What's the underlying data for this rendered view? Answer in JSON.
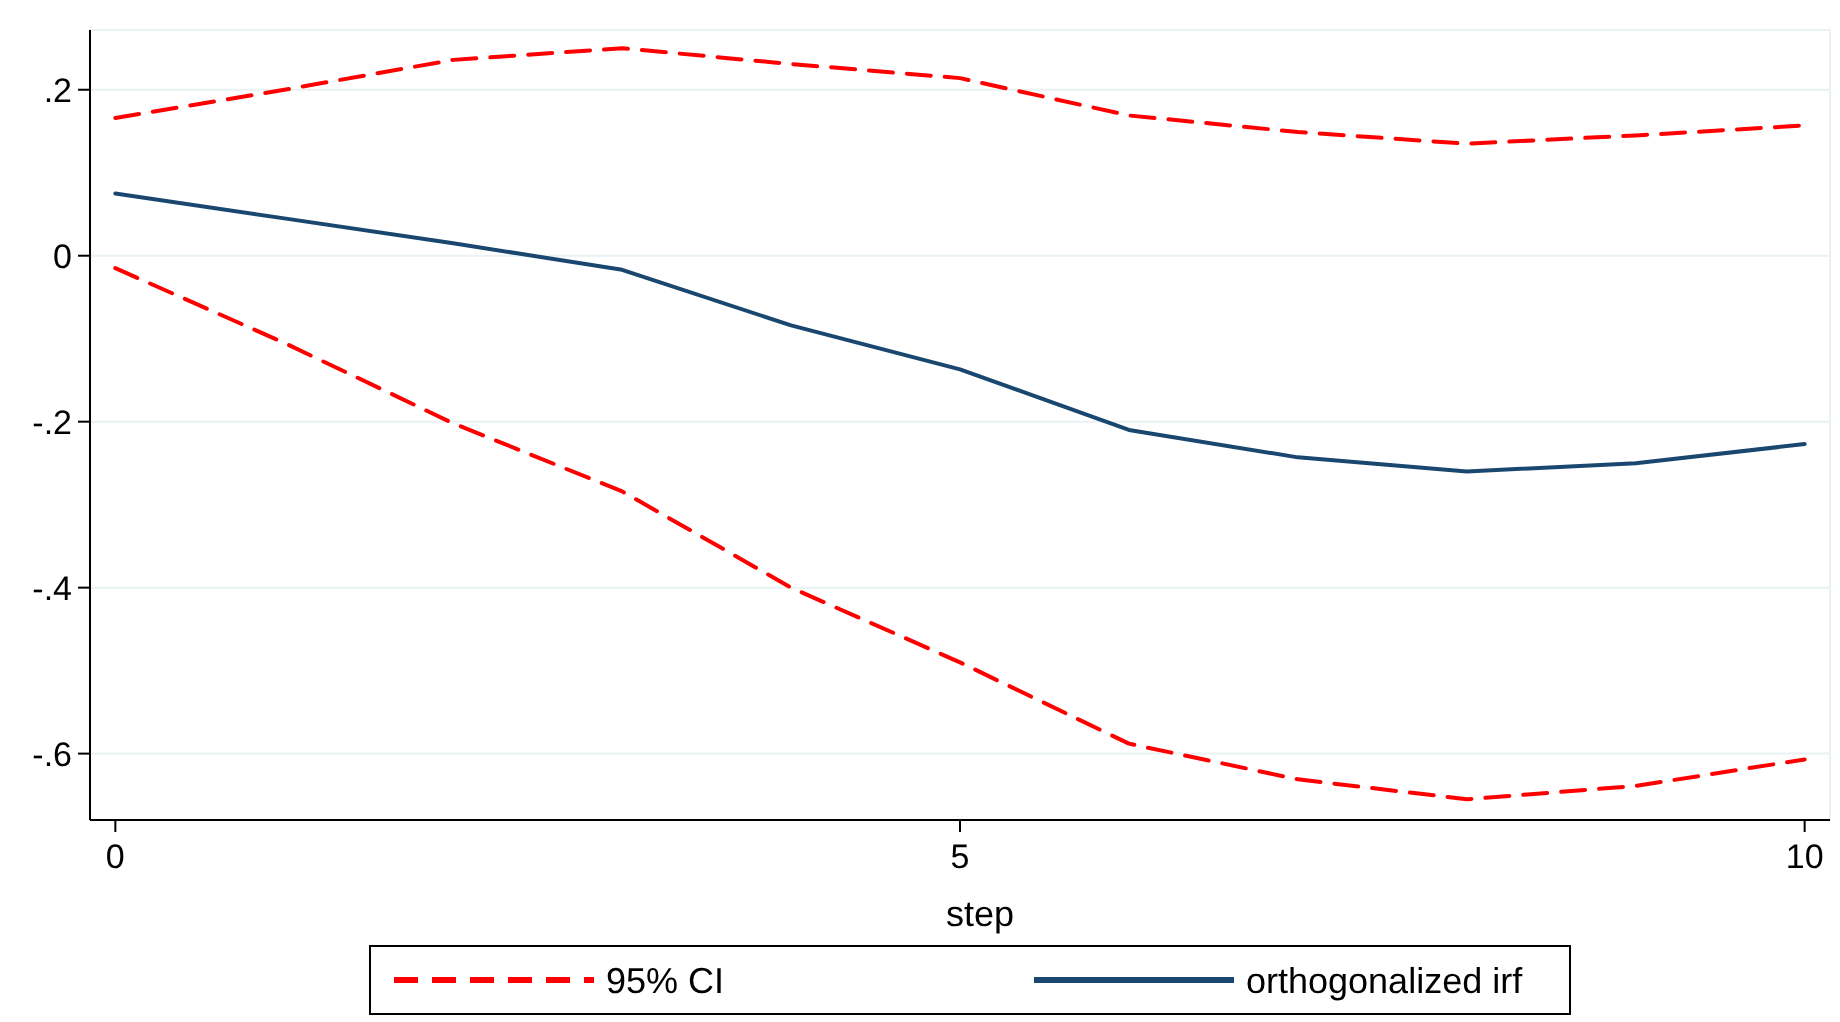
{
  "chart_data": {
    "type": "line",
    "xlabel": "step",
    "x": [
      0,
      1,
      2,
      3,
      4,
      5,
      6,
      7,
      8,
      9,
      10
    ],
    "xlim": [
      -0.15,
      10.15
    ],
    "xticks": [
      0,
      5,
      10
    ],
    "ylim": [
      -0.68,
      0.272
    ],
    "yticks": [
      {
        "value": 0.2,
        "label": ".2"
      },
      0,
      {
        "value": -0.2,
        "label": "-.2"
      },
      {
        "value": -0.4,
        "label": "-.4"
      },
      {
        "value": -0.6,
        "label": "-.6"
      }
    ],
    "grid": "y",
    "legend": "bottom",
    "marker": "none",
    "series": [
      {
        "name": "95% CI",
        "color": "#ff0000",
        "line_style": "dashed",
        "values": [
          0.166,
          0.2,
          0.236,
          0.25,
          0.231,
          0.214,
          0.169,
          0.149,
          0.135,
          0.145,
          0.157
        ]
      },
      {
        "name": "orthogonalized irf",
        "color": "#1a476f",
        "line_style": "solid",
        "values": [
          0.075,
          0.045,
          0.015,
          -0.017,
          -0.084,
          -0.137,
          -0.21,
          -0.243,
          -0.26,
          -0.25,
          -0.227
        ]
      },
      {
        "color": "#ff0000",
        "line_style": "dashed",
        "values": [
          -0.015,
          -0.105,
          -0.202,
          -0.284,
          -0.4,
          -0.49,
          -0.588,
          -0.631,
          -0.655,
          -0.639,
          -0.607
        ]
      }
    ]
  }
}
